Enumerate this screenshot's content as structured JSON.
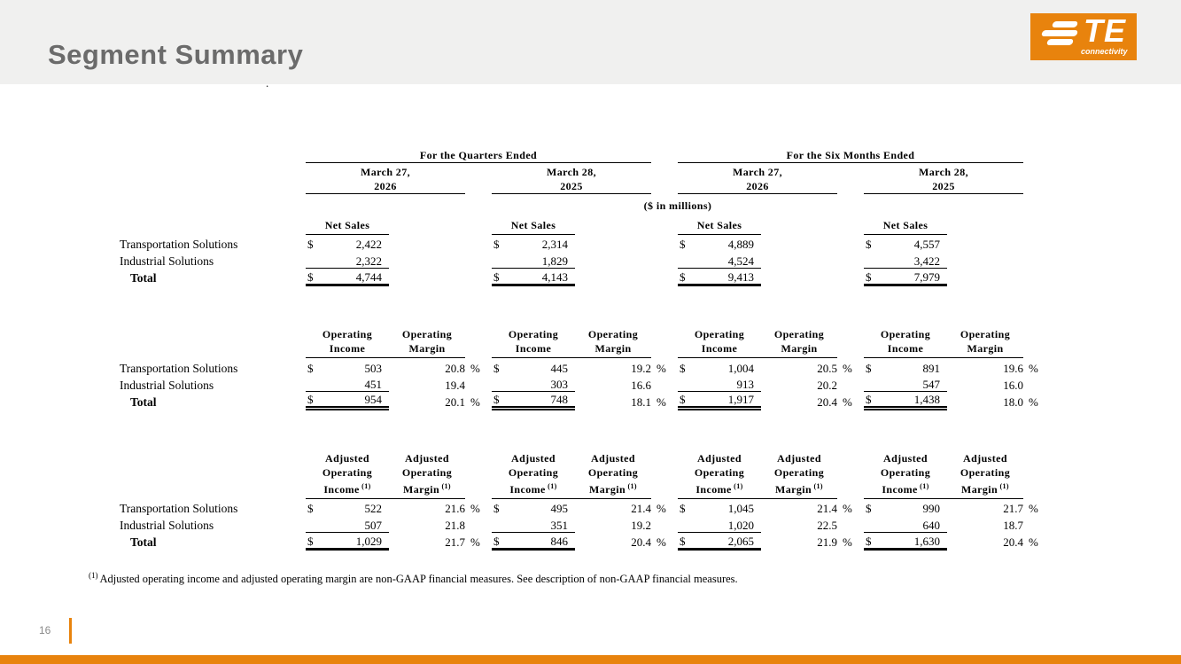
{
  "slide": {
    "title": "Segment Summary",
    "page_number": "16",
    "stray_mark": ".",
    "footnote": {
      "marker": "(1)",
      "text": "Adjusted operating income and adjusted operating margin are non-GAAP financial measures. See description of non-GAAP financial measures."
    }
  },
  "logo": {
    "brand": "TE",
    "tagline": "connectivity"
  },
  "colors": {
    "accent_orange": "#E8830D",
    "title_gray": "#6B6B6B",
    "header_bg": "#F0F0EF",
    "page_number_gray": "#8A8A8A"
  },
  "table": {
    "units_note": "($ in millions)",
    "currency_symbol": "$",
    "percent_symbol": "%",
    "period_groups": [
      {
        "title": "For the Quarters Ended",
        "periods": [
          {
            "month": "March 27,",
            "year": "2026"
          },
          {
            "month": "March 28,",
            "year": "2025"
          }
        ]
      },
      {
        "title": "For the Six Months Ended",
        "periods": [
          {
            "month": "March 27,",
            "year": "2026"
          },
          {
            "month": "March 28,",
            "year": "2025"
          }
        ]
      }
    ],
    "row_labels": [
      "Transportation Solutions",
      "Industrial Solutions",
      "Total"
    ],
    "sections": [
      {
        "id": "net-sales",
        "value_header_lines": [
          "Net Sales"
        ],
        "margin_header_lines": null,
        "header_footnote": null,
        "total_underline": "thick",
        "columns": [
          {
            "values": [
              "2,422",
              "2,322",
              "4,744"
            ],
            "margins": null
          },
          {
            "values": [
              "2,314",
              "1,829",
              "4,143"
            ],
            "margins": null
          },
          {
            "values": [
              "4,889",
              "4,524",
              "9,413"
            ],
            "margins": null
          },
          {
            "values": [
              "4,557",
              "3,422",
              "7,979"
            ],
            "margins": null
          }
        ]
      },
      {
        "id": "operating",
        "value_header_lines": [
          "Operating",
          "Income"
        ],
        "margin_header_lines": [
          "Operating",
          "Margin"
        ],
        "header_footnote": null,
        "total_underline": "double",
        "columns": [
          {
            "values": [
              "503",
              "451",
              "954"
            ],
            "margins": [
              "20.8",
              "19.4",
              "20.1"
            ]
          },
          {
            "values": [
              "445",
              "303",
              "748"
            ],
            "margins": [
              "19.2",
              "16.6",
              "18.1"
            ]
          },
          {
            "values": [
              "1,004",
              "913",
              "1,917"
            ],
            "margins": [
              "20.5",
              "20.2",
              "20.4"
            ]
          },
          {
            "values": [
              "891",
              "547",
              "1,438"
            ],
            "margins": [
              "19.6",
              "16.0",
              "18.0"
            ]
          }
        ]
      },
      {
        "id": "adjusted",
        "value_header_lines": [
          "Adjusted",
          "Operating",
          "Income"
        ],
        "margin_header_lines": [
          "Adjusted",
          "Operating",
          "Margin"
        ],
        "header_footnote": "(1)",
        "total_underline": "thick",
        "columns": [
          {
            "values": [
              "522",
              "507",
              "1,029"
            ],
            "margins": [
              "21.6",
              "21.8",
              "21.7"
            ]
          },
          {
            "values": [
              "495",
              "351",
              "846"
            ],
            "margins": [
              "21.4",
              "19.2",
              "20.4"
            ]
          },
          {
            "values": [
              "1,045",
              "1,020",
              "2,065"
            ],
            "margins": [
              "21.4",
              "22.5",
              "21.9"
            ]
          },
          {
            "values": [
              "990",
              "640",
              "1,630"
            ],
            "margins": [
              "21.7",
              "18.7",
              "20.4"
            ]
          }
        ]
      }
    ]
  }
}
